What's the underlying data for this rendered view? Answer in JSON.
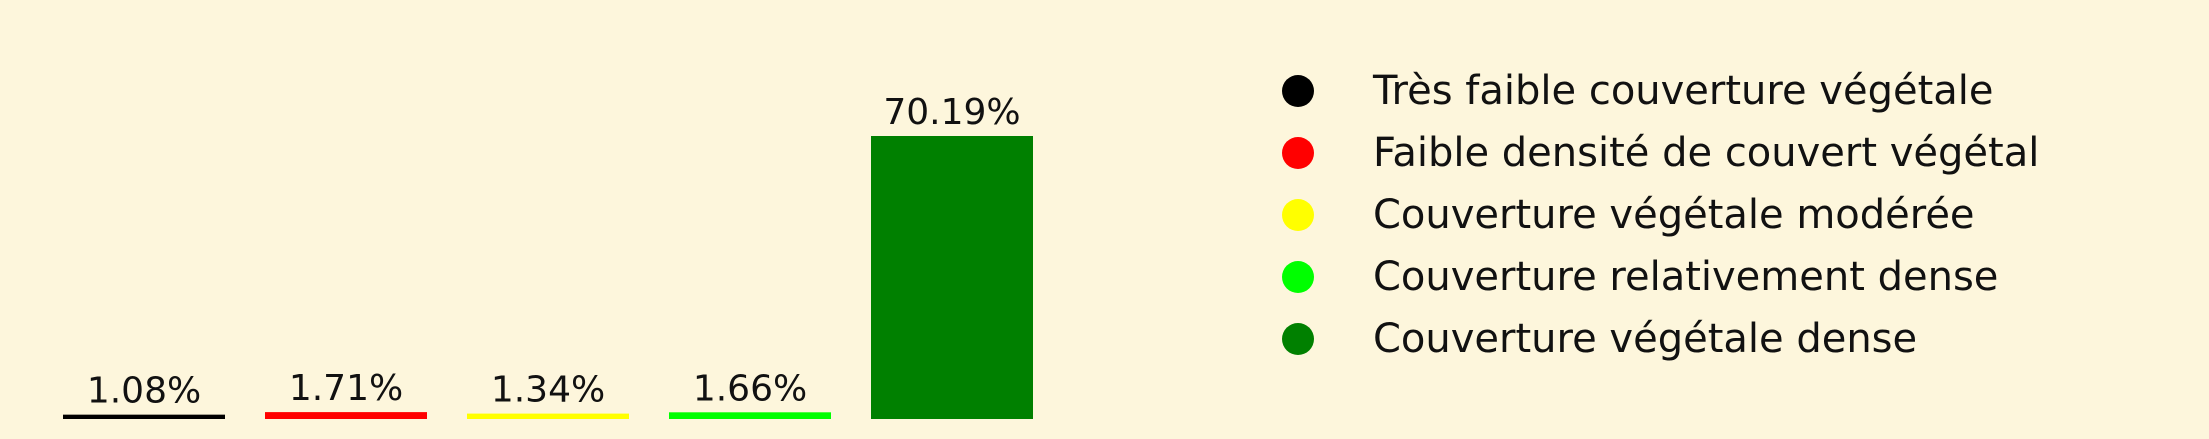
{
  "chart_data": {
    "type": "bar",
    "title": "",
    "xlabel": "",
    "ylabel": "",
    "ylim": [
      0,
      70.19
    ],
    "grid": false,
    "legend_position": "right",
    "categories": [
      "Très faible couverture végétale",
      "Faible densité de couvert végétal",
      "Couverture végétale modérée",
      "Couverture relativement dense",
      "Couverture végétale dense"
    ],
    "values": [
      1.08,
      1.71,
      1.34,
      1.66,
      70.19
    ],
    "data_labels": [
      "1.08%",
      "1.71%",
      "1.34%",
      "1.66%",
      "70.19%"
    ],
    "colors": [
      "#000000",
      "#ff0000",
      "#ffff00",
      "#00ff00",
      "#008000"
    ]
  },
  "legend": {
    "items": [
      {
        "label": "Très faible couverture végétale",
        "color": "#000000"
      },
      {
        "label": "Faible densité de couvert végétal",
        "color": "#ff0000"
      },
      {
        "label": "Couverture végétale modérée",
        "color": "#ffff00"
      },
      {
        "label": "Couverture relativement dense",
        "color": "#00ff00"
      },
      {
        "label": "Couverture végétale dense",
        "color": "#008000"
      }
    ]
  },
  "colors": {
    "background": "#fdf6dc",
    "text": "#111111"
  }
}
